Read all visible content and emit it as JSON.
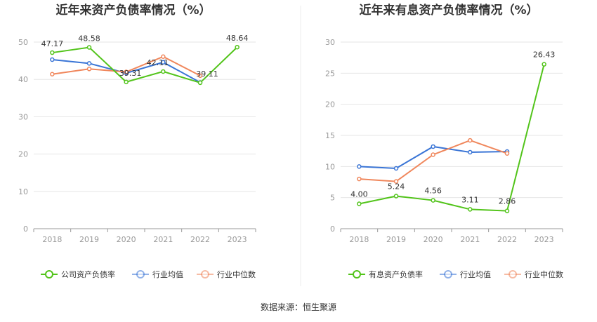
{
  "chart_data": [
    {
      "type": "line",
      "title": "近年来资产负债率情况（%）",
      "categories": [
        "2018",
        "2019",
        "2020",
        "2021",
        "2022",
        "2023"
      ],
      "ylim": [
        0,
        50
      ],
      "yticks": [
        0,
        10,
        20,
        30,
        40,
        50
      ],
      "grid": true,
      "legend": "bottom",
      "series": [
        {
          "name": "公司资产负债率",
          "color": "#52c41a",
          "values": [
            47.17,
            48.58,
            39.31,
            42.11,
            39.11,
            48.64
          ],
          "labels": [
            "47.17",
            "48.58",
            "39.31",
            "42.11",
            "39.11",
            "48.64"
          ]
        },
        {
          "name": "行业均值",
          "color": "#3a75d6",
          "values": [
            45.3,
            44.3,
            41.7,
            44.6,
            39.2,
            null
          ]
        },
        {
          "name": "行业中位数",
          "color": "#f0875c",
          "values": [
            41.4,
            42.8,
            42.0,
            46.1,
            41.0,
            null
          ]
        }
      ]
    },
    {
      "type": "line",
      "title": "近年来有息资产负债率情况（%）",
      "categories": [
        "2018",
        "2019",
        "2020",
        "2021",
        "2022",
        "2023"
      ],
      "ylim": [
        0,
        30
      ],
      "yticks": [
        0,
        5,
        10,
        15,
        20,
        25,
        30
      ],
      "grid": true,
      "legend": "bottom",
      "series": [
        {
          "name": "有息资产负债率",
          "color": "#52c41a",
          "values": [
            4.0,
            5.24,
            4.56,
            3.11,
            2.86,
            26.43
          ],
          "labels": [
            "4.00",
            "5.24",
            "4.56",
            "3.11",
            "2.86",
            "26.43"
          ]
        },
        {
          "name": "行业均值",
          "color": "#3a75d6",
          "values": [
            10.0,
            9.7,
            13.2,
            12.3,
            12.4,
            null
          ]
        },
        {
          "name": "行业中位数",
          "color": "#f0875c",
          "values": [
            8.0,
            7.6,
            11.9,
            14.2,
            12.1,
            null
          ]
        }
      ]
    }
  ],
  "footer": {
    "source": "数据来源：恒生聚源"
  },
  "colors": {
    "grid": "#e6e6e6",
    "axis": "#999999",
    "divider": "#eeeeee"
  }
}
